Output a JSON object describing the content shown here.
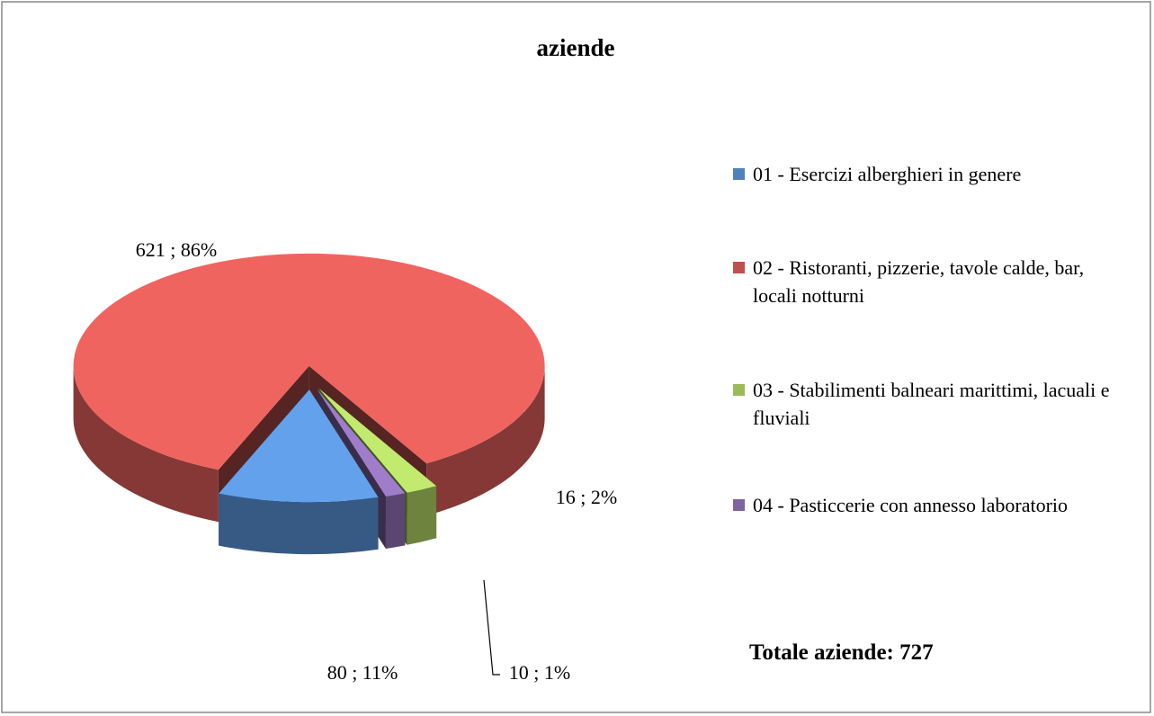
{
  "chart_data": {
    "type": "pie",
    "title": "aziende",
    "categories": [
      "01 - Esercizi alberghieri in genere",
      "02 - Ristoranti, pizzerie, tavole calde, bar, locali notturni",
      "03 - Stabilimenti balneari marittimi, lacuali e fluviali",
      "04 - Pasticcerie con annesso laboratorio"
    ],
    "values": [
      80,
      621,
      16,
      10
    ],
    "value_labels": [
      "80 ; 11%",
      "621 ; 86%",
      "16 ; 2%",
      "10 ; 1%"
    ],
    "colors": [
      "#4f81bd",
      "#c0504d",
      "#9bbb59",
      "#8064a2"
    ],
    "annotation": "Totale aziende: 727"
  }
}
